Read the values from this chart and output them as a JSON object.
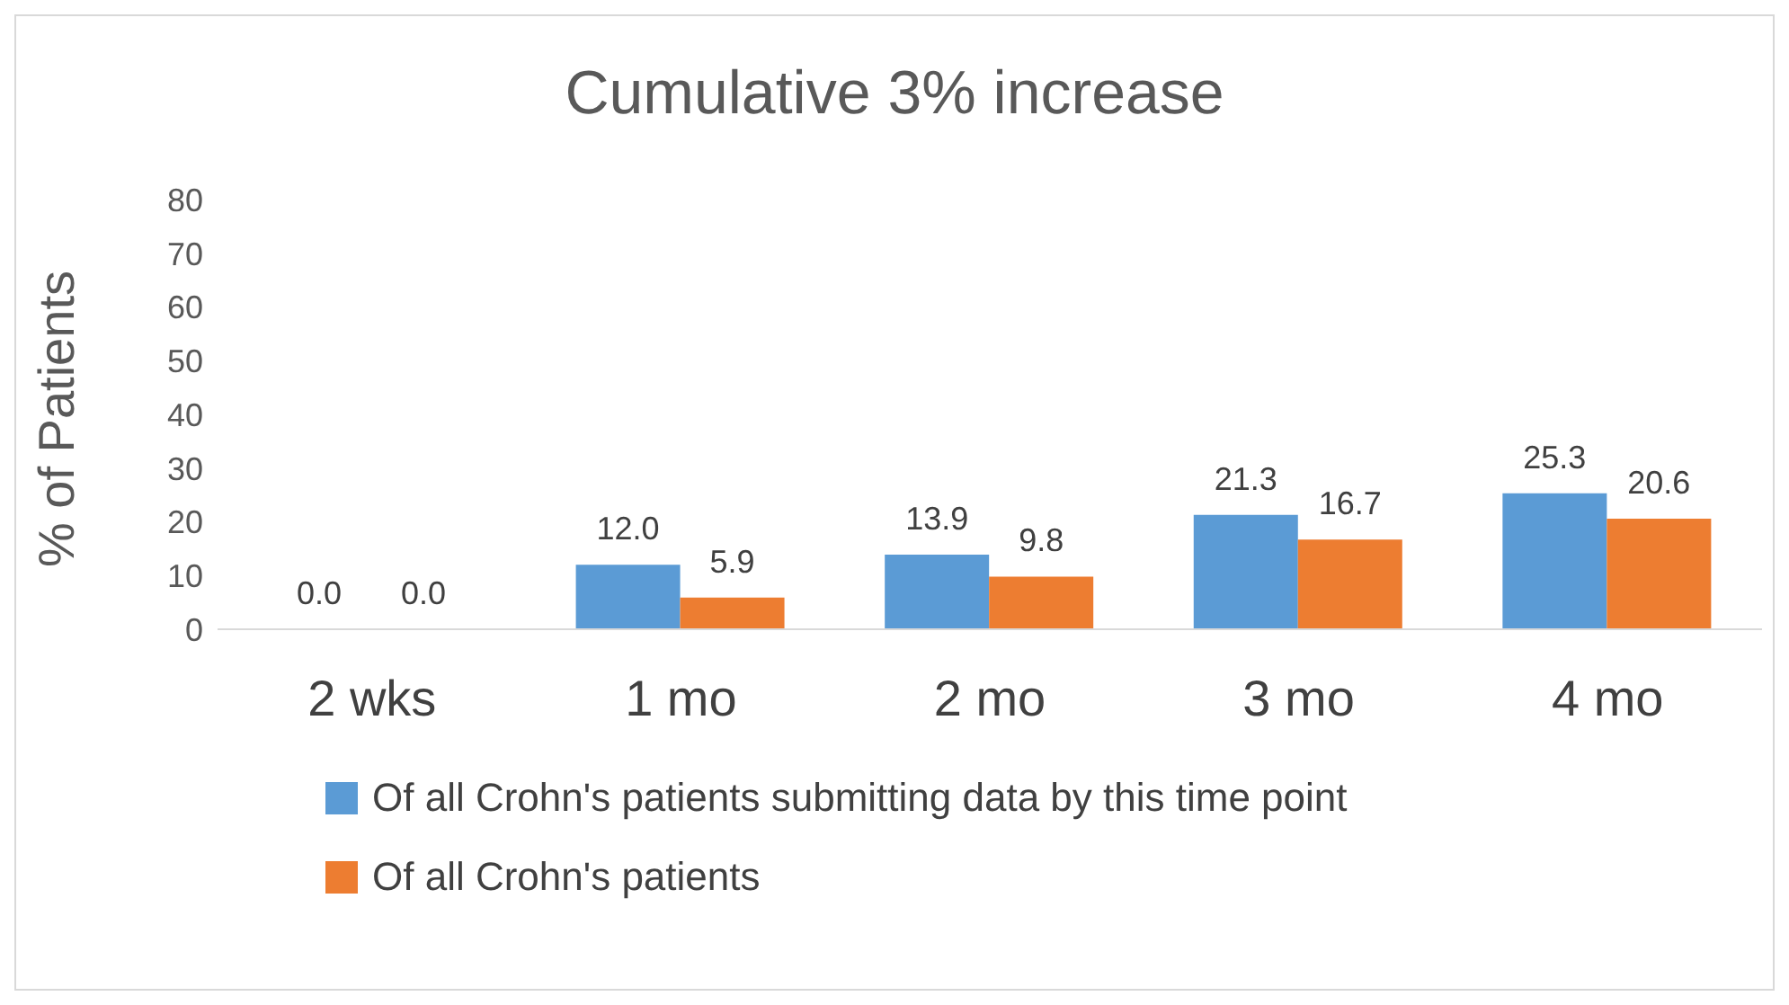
{
  "chart_data": {
    "type": "bar",
    "title": "Cumulative 3% increase",
    "ylabel": "% of Patients",
    "categories": [
      "2 wks",
      "1 mo",
      "2 mo",
      "3 mo",
      "4 mo"
    ],
    "series": [
      {
        "name": "Of all Crohn's patients submitting data by this time point",
        "color": "#5b9bd5",
        "values": [
          0,
          12,
          13.9,
          21.3,
          25.3
        ],
        "value_labels": [
          "0.0",
          "12.0",
          "13.9",
          "21.3",
          "25.3"
        ]
      },
      {
        "name": "Of all Crohn's patients",
        "color": "#ed7d31",
        "values": [
          0,
          5.9,
          9.8,
          16.7,
          20.6
        ],
        "value_labels": [
          "0.0",
          "5.9",
          "9.8",
          "16.7",
          "20.6"
        ]
      }
    ],
    "ylim": [
      0,
      80
    ],
    "yticks": [
      0,
      10,
      20,
      30,
      40,
      50,
      60,
      70,
      80
    ],
    "grid": false,
    "legend": "bottom"
  }
}
